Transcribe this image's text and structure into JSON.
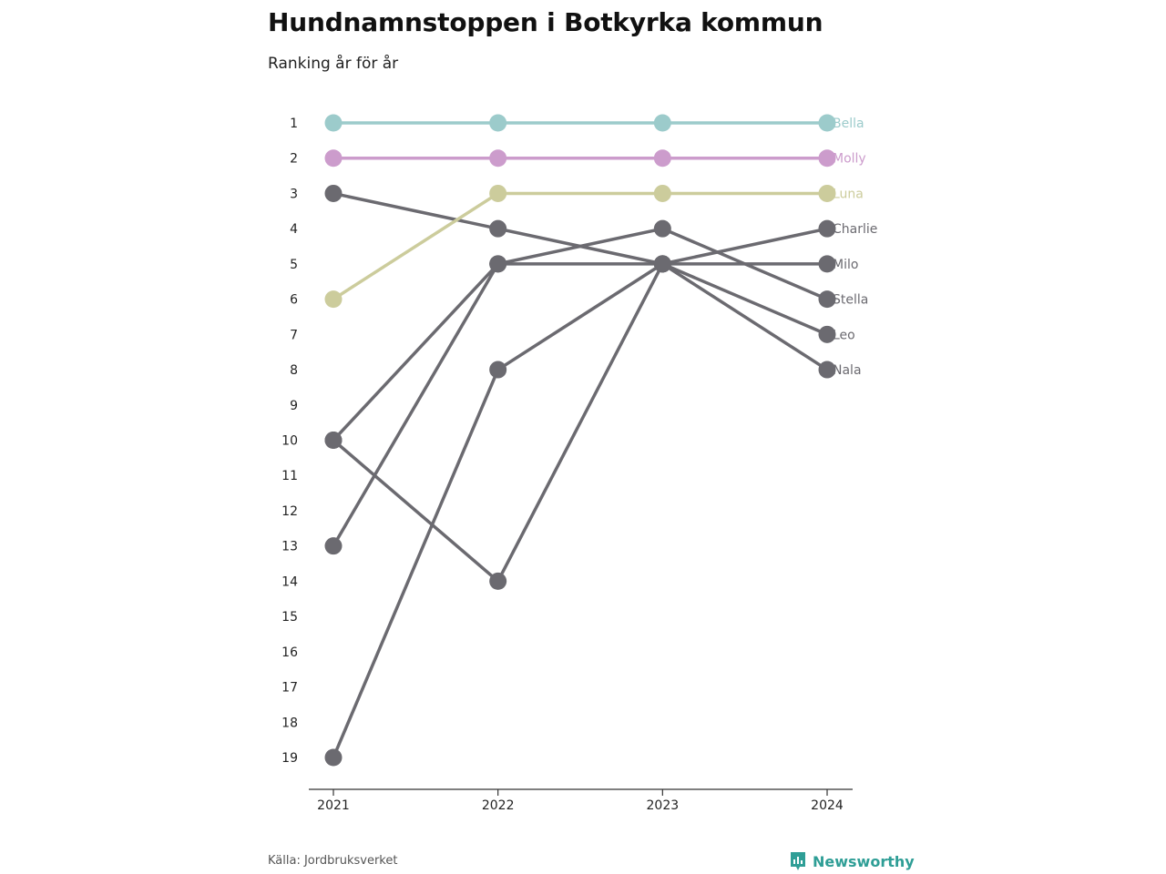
{
  "header": {
    "title": "Hundnamnstoppen i Botkyrka kommun",
    "subtitle": "Ranking år för år"
  },
  "footer": {
    "source": "Källa: Jordbruksverket",
    "brand": "Newsworthy"
  },
  "colors": {
    "Bella": "#9ccbcb",
    "Molly": "#cc9ccc",
    "Luna": "#cccc9c",
    "other": "#6b6a70",
    "axis": "#333333",
    "brand": "#2f9e96"
  },
  "chart_data": {
    "type": "line",
    "x": [
      "2021",
      "2022",
      "2023",
      "2024"
    ],
    "y_ticks": [
      1,
      2,
      3,
      4,
      5,
      6,
      7,
      8,
      9,
      10,
      11,
      12,
      13,
      14,
      15,
      16,
      17,
      18,
      19
    ],
    "ylim": [
      1,
      19
    ],
    "y_reversed": true,
    "grid": false,
    "series": [
      {
        "name": "Bella",
        "values": [
          1,
          1,
          1,
          1
        ]
      },
      {
        "name": "Molly",
        "values": [
          2,
          2,
          2,
          2
        ]
      },
      {
        "name": "Luna",
        "values": [
          6,
          3,
          3,
          3
        ]
      },
      {
        "name": "Charlie",
        "values": [
          13,
          5,
          5,
          4
        ]
      },
      {
        "name": "Milo",
        "values": [
          3,
          4,
          5,
          5
        ]
      },
      {
        "name": "Stella",
        "values": [
          10,
          5,
          4,
          6
        ]
      },
      {
        "name": "Leo",
        "values": [
          19,
          8,
          5,
          7
        ]
      },
      {
        "name": "Nala",
        "values": [
          10,
          14,
          5,
          8
        ]
      }
    ]
  }
}
